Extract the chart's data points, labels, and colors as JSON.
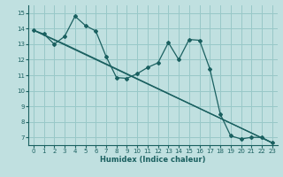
{
  "title": "",
  "xlabel": "Humidex (Indice chaleur)",
  "bg_color": "#c0e0e0",
  "grid_color": "#98c8c8",
  "line_color": "#1a6060",
  "xlim": [
    -0.5,
    23.5
  ],
  "ylim": [
    6.5,
    15.5
  ],
  "xticks": [
    0,
    1,
    2,
    3,
    4,
    5,
    6,
    7,
    8,
    9,
    10,
    11,
    12,
    13,
    14,
    15,
    16,
    17,
    18,
    19,
    20,
    21,
    22,
    23
  ],
  "yticks": [
    7,
    8,
    9,
    10,
    11,
    12,
    13,
    14,
    15
  ],
  "line1_x": [
    0,
    1,
    2,
    3,
    4,
    5,
    6,
    7,
    8,
    9,
    10,
    11,
    12,
    13,
    14,
    15,
    16,
    17,
    18,
    19,
    20,
    21,
    22,
    23
  ],
  "line1_y": [
    13.9,
    13.65,
    13.0,
    13.5,
    14.8,
    14.2,
    13.85,
    12.2,
    10.85,
    10.8,
    11.1,
    11.5,
    11.8,
    13.1,
    12.0,
    13.3,
    13.25,
    11.4,
    8.5,
    7.1,
    6.9,
    7.0,
    7.0,
    6.65
  ],
  "line2_x": [
    0,
    23
  ],
  "line2_y": [
    13.9,
    6.65
  ],
  "line3_x": [
    0,
    3,
    23
  ],
  "line3_y": [
    13.9,
    13.0,
    6.65
  ]
}
